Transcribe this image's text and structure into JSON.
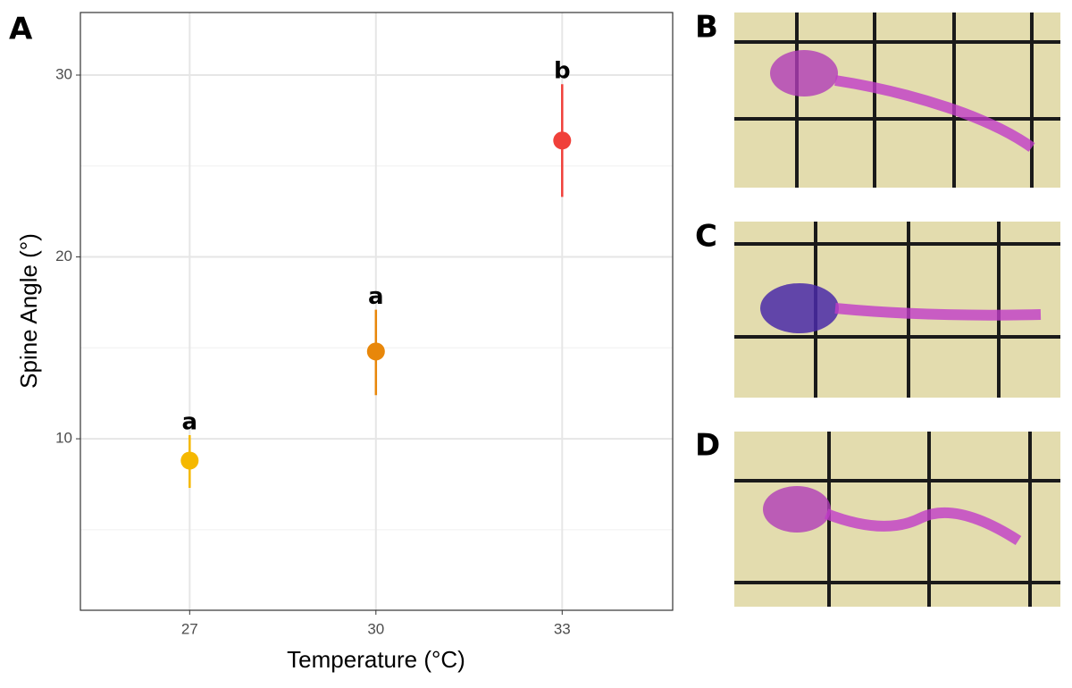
{
  "panel_labels": [
    "A",
    "B",
    "C",
    "D"
  ],
  "chart_data": {
    "type": "pointrange",
    "x_label": "Temperature (°C)",
    "y_label": "Spine Angle (°)",
    "x": [
      27,
      30,
      33
    ],
    "values": [
      8.8,
      14.8,
      26.4
    ],
    "lower": [
      7.3,
      12.4,
      23.3
    ],
    "upper": [
      10.2,
      17.1,
      29.5
    ],
    "colors": [
      "#f5b800",
      "#e8870a",
      "#f0403a"
    ],
    "annotations": [
      "a",
      "a",
      "b"
    ],
    "xlim": [
      25.24,
      34.78
    ],
    "ylim": [
      0.57,
      33.44
    ],
    "xticks": [
      27,
      30,
      33
    ],
    "yticks": [
      10,
      20,
      30
    ],
    "minor_yticks": [
      5,
      15,
      25
    ],
    "grid": true
  }
}
